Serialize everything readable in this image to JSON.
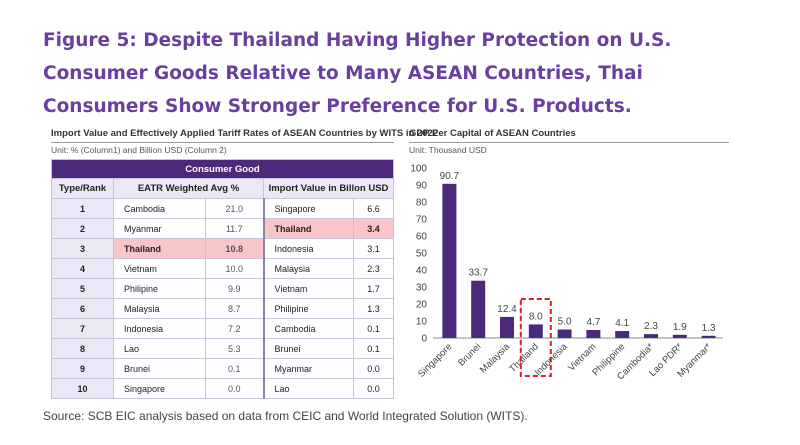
{
  "figure_title": "Figure 5: Despite Thailand Having Higher Protection on U.S. Consumer Goods Relative to Many ASEAN Countries, Thai Consumers Show Stronger Preference for U.S. Products.",
  "left_panel": {
    "title": "Import Value and Effectively Applied Tariff Rates of ASEAN Countries by WITS in 2022",
    "unit": "Unit: % (Column1) and Billion USD (Column 2)",
    "group_header": "Consumer Good",
    "col_headers": [
      "Type/Rank",
      "EATR Weighted Avg %",
      "Import Value in Billon USD"
    ],
    "rows": [
      {
        "rank": "1",
        "c1": "Cambodia",
        "v1": "21.0",
        "c2": "Singapore",
        "v2": "6.6",
        "hl1": false,
        "hl2": false
      },
      {
        "rank": "2",
        "c1": "Myanmar",
        "v1": "11.7",
        "c2": "Thailand",
        "v2": "3.4",
        "hl1": false,
        "hl2": true
      },
      {
        "rank": "3",
        "c1": "Thailand",
        "v1": "10.8",
        "c2": "Indonesia",
        "v2": "3.1",
        "hl1": true,
        "hl2": false
      },
      {
        "rank": "4",
        "c1": "Vietnam",
        "v1": "10.0",
        "c2": "Malaysia",
        "v2": "2.3",
        "hl1": false,
        "hl2": false
      },
      {
        "rank": "5",
        "c1": "Philipine",
        "v1": "9.9",
        "c2": "Vietnam",
        "v2": "1.7",
        "hl1": false,
        "hl2": false
      },
      {
        "rank": "6",
        "c1": "Malaysia",
        "v1": "8.7",
        "c2": "Philipine",
        "v2": "1.3",
        "hl1": false,
        "hl2": false
      },
      {
        "rank": "7",
        "c1": "Indonesia",
        "v1": "7.2",
        "c2": "Cambodia",
        "v2": "0.1",
        "hl1": false,
        "hl2": false
      },
      {
        "rank": "8",
        "c1": "Lao",
        "v1": "5.3",
        "c2": "Brunei",
        "v2": "0.1",
        "hl1": false,
        "hl2": false
      },
      {
        "rank": "9",
        "c1": "Brunei",
        "v1": "0.1",
        "c2": "Myanmar",
        "v2": "0.0",
        "hl1": false,
        "hl2": false
      },
      {
        "rank": "10",
        "c1": "Singapore",
        "v1": "0.0",
        "c2": "Lao",
        "v2": "0.0",
        "hl1": false,
        "hl2": false
      }
    ],
    "highlight_color": "#f8c5c8",
    "header_color": "#4b2a7b"
  },
  "right_panel": {
    "title": "GDP Per Capital of ASEAN Countries",
    "unit": "Unit: Thousand USD"
  },
  "chart_data": {
    "type": "bar",
    "categories": [
      "Singapore",
      "Brunei",
      "Malaysia",
      "Thailand",
      "Indonesia",
      "Vietnam",
      "Philippine",
      "Cambodia*",
      "Lao PDR*",
      "Myanmar*"
    ],
    "values": [
      90.7,
      33.7,
      12.4,
      8.0,
      5.0,
      4.7,
      4.1,
      2.3,
      1.9,
      1.3
    ],
    "value_labels": [
      "90.7",
      "33.7",
      "12.4",
      "8.0",
      "5.0",
      "4.7",
      "4.1",
      "2.3",
      "1.9",
      "1.3"
    ],
    "title": "GDP Per Capital of ASEAN Countries",
    "xlabel": "",
    "ylabel": "",
    "ylim": [
      0,
      100
    ],
    "yticks": [
      0,
      10,
      20,
      30,
      40,
      50,
      60,
      70,
      80,
      90,
      100
    ],
    "grid": false,
    "bar_color": "#4b2a7b",
    "highlight_category": "Thailand",
    "highlight_color": "#e02020"
  },
  "source": "Source: SCB EIC analysis based on data from CEIC and World Integrated Solution (WITS)."
}
